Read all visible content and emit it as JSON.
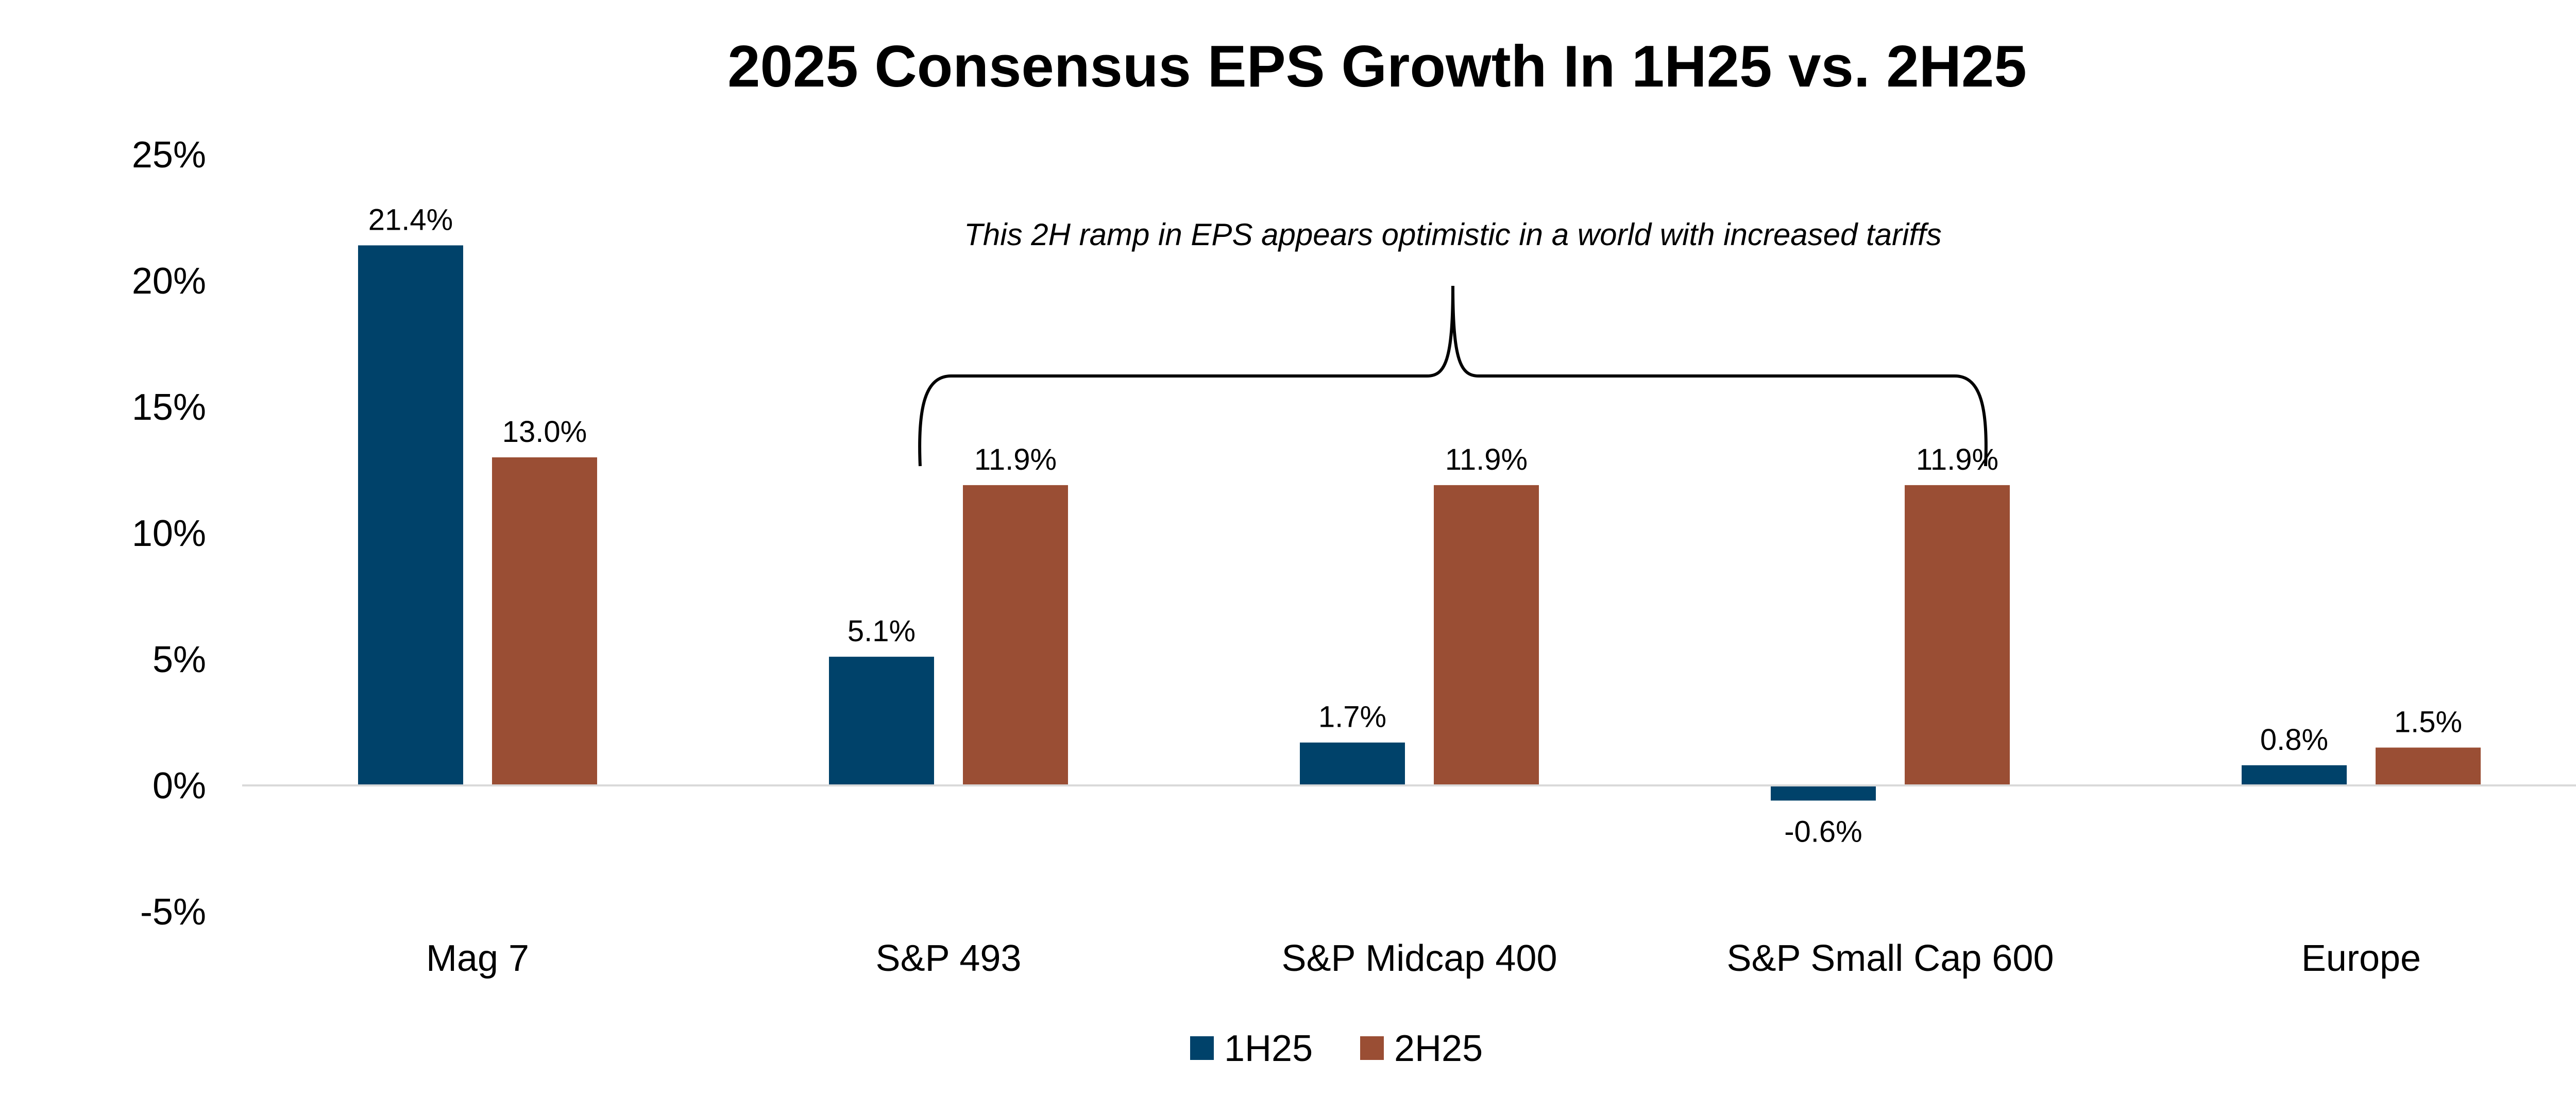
{
  "chart_data": {
    "type": "bar",
    "title": "2025 Consensus EPS Growth In 1H25 vs. 2H25",
    "xlabel": "",
    "ylabel": "",
    "categories": [
      "Mag 7",
      "S&P 493",
      "S&P Midcap 400",
      "S&P Small Cap 600",
      "Europe"
    ],
    "series": [
      {
        "name": "1H25",
        "values": [
          21.4,
          5.1,
          1.7,
          -0.6,
          0.8
        ],
        "labels": [
          "21.4%",
          "5.1%",
          "1.7%",
          "-0.6%",
          "0.8%"
        ],
        "color": "#00426a"
      },
      {
        "name": "2H25",
        "values": [
          13.0,
          11.9,
          11.9,
          11.9,
          1.5
        ],
        "labels": [
          "13.0%",
          "11.9%",
          "11.9%",
          "11.9%",
          "1.5%"
        ],
        "color": "#9a4e34"
      }
    ],
    "ylim": [
      -5,
      25
    ],
    "yticks": [
      25,
      20,
      15,
      10,
      5,
      0,
      -5
    ],
    "ytick_labels": [
      "25%",
      "20%",
      "15%",
      "10%",
      "5%",
      "0%",
      "-5%"
    ],
    "grid": false,
    "legend_position": "bottom-center",
    "annotation": {
      "text": "This 2H ramp in EPS appears optimistic in a world with increased tariffs",
      "spans_categories": [
        "S&P 493",
        "S&P Midcap 400",
        "S&P Small Cap 600"
      ]
    },
    "colors": {
      "axis_line": "#d9d9d9",
      "text": "#000000",
      "background": "#ffffff"
    }
  }
}
